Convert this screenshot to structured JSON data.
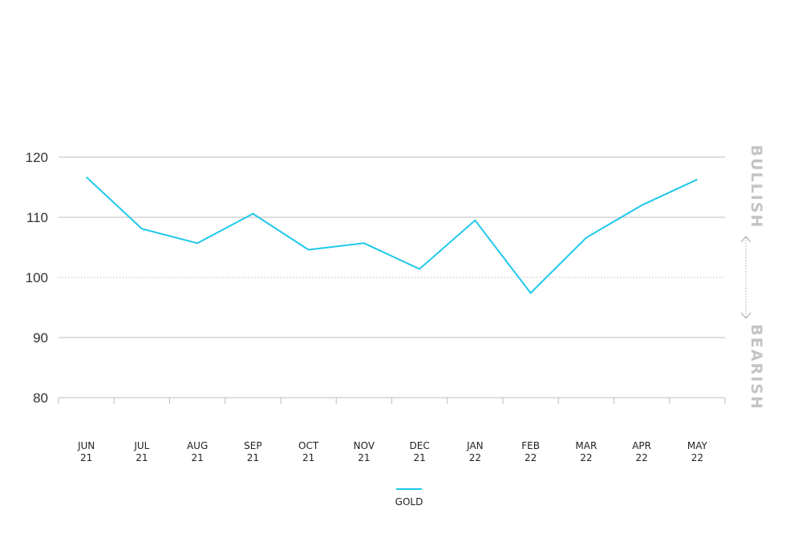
{
  "chart_data": {
    "type": "line",
    "categories": [
      [
        "JUN",
        "21"
      ],
      [
        "JUL",
        "21"
      ],
      [
        "AUG",
        "21"
      ],
      [
        "SEP",
        "21"
      ],
      [
        "OCT",
        "21"
      ],
      [
        "NOV",
        "21"
      ],
      [
        "DEC",
        "21"
      ],
      [
        "JAN",
        "22"
      ],
      [
        "FEB",
        "22"
      ],
      [
        "MAR",
        "22"
      ],
      [
        "APR",
        "22"
      ],
      [
        "MAY",
        "22"
      ]
    ],
    "series": [
      {
        "name": "GOLD",
        "color": "#1ec8ea",
        "values": [
          116.7,
          108.1,
          105.7,
          110.6,
          104.6,
          105.7,
          101.4,
          109.5,
          97.4,
          106.6,
          112.0,
          116.3
        ]
      }
    ],
    "ylim": [
      80,
      120
    ],
    "yticks": [
      80,
      90,
      100,
      110,
      120
    ],
    "reference_line": 100,
    "side_labels": {
      "upper": "BULLISH",
      "lower": "BEARISH"
    },
    "grid": true,
    "legend_position": "bottom-center",
    "colors": {
      "grid": "#bdbdbd",
      "reference": "#bbbbbb",
      "side_label": "#c4c4c4"
    }
  }
}
